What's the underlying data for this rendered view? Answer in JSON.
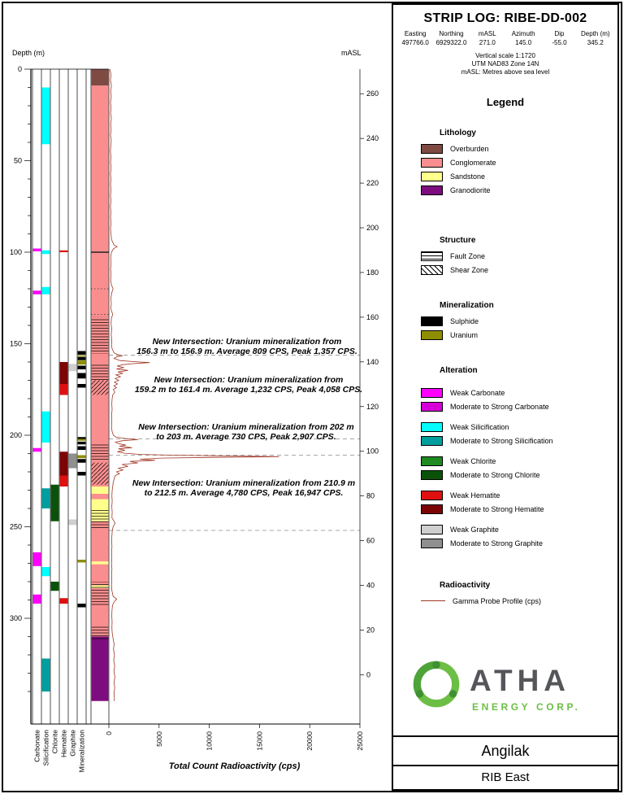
{
  "header": {
    "title": "STRIP LOG: RIBE-DD-002",
    "coords": [
      {
        "label": "Easting",
        "value": "497766.0"
      },
      {
        "label": "Northing",
        "value": "6929322.0"
      },
      {
        "label": "mASL",
        "value": "271.0"
      },
      {
        "label": "Azimuth",
        "value": "145.0"
      },
      {
        "label": "Dip",
        "value": "-55.0"
      },
      {
        "label": "Depth (m)",
        "value": "345.2"
      }
    ],
    "notes": [
      "Vertical scale 1:1720",
      "UTM NAD83 Zone 14N",
      "mASL: Metres above sea level"
    ]
  },
  "legend": {
    "title": "Legend",
    "lithology": {
      "title": "Lithology",
      "items": [
        {
          "label": "Overburden",
          "color": "#7F4A42"
        },
        {
          "label": "Conglomerate",
          "color": "#FA8E8E"
        },
        {
          "label": "Sandstone",
          "color": "#FFFF8C"
        },
        {
          "label": "Granodiorite",
          "color": "#7D0C7E"
        }
      ]
    },
    "structure": {
      "title": "Structure",
      "items": [
        {
          "label": "Fault Zone",
          "pattern": "fault"
        },
        {
          "label": "Shear Zone",
          "pattern": "shear"
        }
      ]
    },
    "mineralization": {
      "title": "Mineralization",
      "items": [
        {
          "label": "Sulphide",
          "color": "#000000"
        },
        {
          "label": "Uranium",
          "color": "#8E8E00"
        }
      ]
    },
    "alteration": {
      "title": "Alteration",
      "items": [
        {
          "weak_label": "Weak Carbonate",
          "weak_color": "#FF00FF",
          "strong_label": "Moderate to Strong Carbonate",
          "strong_color": "#D600D6"
        },
        {
          "weak_label": "Weak Silicification",
          "weak_color": "#00FFFF",
          "strong_label": "Moderate to Strong Silicification",
          "strong_color": "#009E9E"
        },
        {
          "weak_label": "Weak Chlorite",
          "weak_color": "#1F8A1F",
          "strong_label": "Moderate to Strong Chlorite",
          "strong_color": "#0A520A"
        },
        {
          "weak_label": "Weak Hematite",
          "weak_color": "#DE1010",
          "strong_label": "Moderate to Strong Hematite",
          "strong_color": "#7C0404"
        },
        {
          "weak_label": "Weak Graphite",
          "weak_color": "#CFCFCF",
          "strong_label": "Moderate to Strong Graphite",
          "strong_color": "#8F8F8F"
        }
      ]
    },
    "radioactivity": {
      "title": "Radioactivity",
      "items": [
        {
          "label": "Gamma Probe Profile (cps)",
          "color": "#A03524"
        }
      ]
    }
  },
  "logo": {
    "brand": "ATHA",
    "sub": "ENERGY CORP.",
    "green": "#6CBE45",
    "dark": "#54565A"
  },
  "footer": {
    "project": "Angilak",
    "area": "RIB East"
  },
  "chart_data": {
    "type": "strip-log",
    "title": "STRIP LOG: RIBE-DD-002",
    "depth_axis": {
      "label": "Depth (m)",
      "min": 0,
      "max": 345.2,
      "major_tick": 50,
      "minor_tick": 10
    },
    "masl_axis": {
      "label": "mASL",
      "collar_masl": 271.0,
      "dip_deg": -55.0,
      "ticks": [
        260,
        240,
        220,
        200,
        180,
        160,
        140,
        120,
        100,
        80,
        60,
        40,
        20,
        0
      ]
    },
    "gamma_axis": {
      "label": "Total Count Radioactivity (cps)",
      "min": 0,
      "max": 25000,
      "ticks": [
        0,
        5000,
        10000,
        15000,
        20000,
        25000
      ]
    },
    "track_labels": [
      "Carbonate",
      "Silicification",
      "Chlorite",
      "Hematite",
      "Graphite",
      "Mineralization"
    ],
    "lithology": [
      {
        "from": 0,
        "to": 9,
        "unit": "Overburden"
      },
      {
        "from": 9,
        "to": 228,
        "unit": "Conglomerate"
      },
      {
        "from": 228,
        "to": 232,
        "unit": "Sandstone"
      },
      {
        "from": 232,
        "to": 235,
        "unit": "Conglomerate"
      },
      {
        "from": 235,
        "to": 247,
        "unit": "Sandstone"
      },
      {
        "from": 247,
        "to": 269,
        "unit": "Conglomerate"
      },
      {
        "from": 269,
        "to": 270.5,
        "unit": "Sandstone"
      },
      {
        "from": 270.5,
        "to": 282,
        "unit": "Conglomerate"
      },
      {
        "from": 282,
        "to": 283.5,
        "unit": "Sandstone"
      },
      {
        "from": 283.5,
        "to": 310,
        "unit": "Conglomerate"
      },
      {
        "from": 310,
        "to": 345.2,
        "unit": "Granodiorite"
      }
    ],
    "alteration_tracks": {
      "carbonate": [
        {
          "from": 98,
          "to": 99.5,
          "grade": "weak"
        },
        {
          "from": 121,
          "to": 123,
          "grade": "weak"
        },
        {
          "from": 207,
          "to": 209,
          "grade": "weak"
        },
        {
          "from": 264,
          "to": 271.5,
          "grade": "weak"
        },
        {
          "from": 287,
          "to": 292,
          "grade": "weak"
        }
      ],
      "silicification": [
        {
          "from": 10,
          "to": 41,
          "grade": "weak"
        },
        {
          "from": 99,
          "to": 101,
          "grade": "weak"
        },
        {
          "from": 119,
          "to": 123,
          "grade": "weak"
        },
        {
          "from": 187,
          "to": 204,
          "grade": "weak"
        },
        {
          "from": 229,
          "to": 240,
          "grade": "strong"
        },
        {
          "from": 272,
          "to": 277,
          "grade": "weak"
        },
        {
          "from": 322,
          "to": 340,
          "grade": "strong"
        }
      ],
      "chlorite": [
        {
          "from": 227,
          "to": 247,
          "grade": "strong"
        },
        {
          "from": 280,
          "to": 285,
          "grade": "strong"
        }
      ],
      "hematite": [
        {
          "from": 99,
          "to": 100,
          "grade": "weak"
        },
        {
          "from": 160,
          "to": 172,
          "grade": "strong"
        },
        {
          "from": 172,
          "to": 178,
          "grade": "weak"
        },
        {
          "from": 209,
          "to": 222,
          "grade": "strong"
        },
        {
          "from": 222,
          "to": 228,
          "grade": "weak"
        },
        {
          "from": 289,
          "to": 292,
          "grade": "weak"
        }
      ],
      "graphite": [
        {
          "from": 161,
          "to": 165,
          "grade": "weak"
        },
        {
          "from": 210,
          "to": 218,
          "grade": "strong"
        },
        {
          "from": 246,
          "to": 249,
          "grade": "weak"
        }
      ]
    },
    "mineralization_track": [
      {
        "from": 154,
        "to": 156,
        "type": "sulphide"
      },
      {
        "from": 156.3,
        "to": 156.9,
        "type": "uranium"
      },
      {
        "from": 157.2,
        "to": 159,
        "type": "sulphide"
      },
      {
        "from": 159.2,
        "to": 161.4,
        "type": "uranium"
      },
      {
        "from": 162,
        "to": 164,
        "type": "sulphide"
      },
      {
        "from": 166,
        "to": 169,
        "type": "sulphide"
      },
      {
        "from": 172,
        "to": 174,
        "type": "sulphide"
      },
      {
        "from": 201,
        "to": 202,
        "type": "sulphide"
      },
      {
        "from": 202,
        "to": 203,
        "type": "uranium"
      },
      {
        "from": 203.5,
        "to": 205,
        "type": "sulphide"
      },
      {
        "from": 206,
        "to": 208,
        "type": "sulphide"
      },
      {
        "from": 210.9,
        "to": 212.5,
        "type": "uranium"
      },
      {
        "from": 213,
        "to": 215,
        "type": "sulphide"
      },
      {
        "from": 220,
        "to": 222,
        "type": "sulphide"
      },
      {
        "from": 268,
        "to": 269.5,
        "type": "uranium"
      },
      {
        "from": 292,
        "to": 294,
        "type": "sulphide"
      }
    ],
    "structure_zones": [
      {
        "from": 135.5,
        "to": 155.5,
        "type": "fault"
      },
      {
        "from": 161,
        "to": 170,
        "type": "fault"
      },
      {
        "from": 170,
        "to": 178,
        "type": "shear"
      },
      {
        "from": 205,
        "to": 214,
        "type": "fault"
      },
      {
        "from": 215,
        "to": 227,
        "type": "shear"
      },
      {
        "from": 240,
        "to": 251,
        "type": "fault"
      },
      {
        "from": 280,
        "to": 293,
        "type": "fault"
      },
      {
        "from": 304,
        "to": 312,
        "type": "fault"
      }
    ],
    "reference_lines": {
      "dashed_depths": [
        156.3,
        202,
        210.9,
        252
      ],
      "solid_depths": [
        100
      ],
      "dotted_depths": [
        120,
        134
      ]
    },
    "annotations": [
      {
        "line1": "New Intersection: Uranium mineralization from",
        "line2": "156.3 m to 156.9 m. Average 809 CPS, Peak 1,357 CPS."
      },
      {
        "line1": "New Intersection: Uranium mineralization from",
        "line2": "159.2 m to 161.4 m. Average 1,232 CPS, Peak 4,058 CPS."
      },
      {
        "line1": "New Intersection: Uranium mineralization from 202 m",
        "line2": "to 203 m. Average 730 CPS, Peak 2,907 CPS."
      },
      {
        "line1": "New Intersection: Uranium mineralization from 210.9 m",
        "line2": "to 212.5 m. Average 4,780 CPS, Peak 16,947 CPS."
      }
    ],
    "gamma_profile": [
      [
        0,
        100
      ],
      [
        3,
        220
      ],
      [
        6,
        150
      ],
      [
        9,
        260
      ],
      [
        12,
        180
      ],
      [
        15,
        240
      ],
      [
        18,
        160
      ],
      [
        21,
        220
      ],
      [
        24,
        170
      ],
      [
        27,
        250
      ],
      [
        30,
        180
      ],
      [
        33,
        230
      ],
      [
        36,
        160
      ],
      [
        39,
        240
      ],
      [
        42,
        190
      ],
      [
        45,
        150
      ],
      [
        48,
        210
      ],
      [
        51,
        170
      ],
      [
        54,
        230
      ],
      [
        57,
        160
      ],
      [
        60,
        200
      ],
      [
        63,
        170
      ],
      [
        66,
        220
      ],
      [
        69,
        160
      ],
      [
        72,
        210
      ],
      [
        75,
        150
      ],
      [
        78,
        200
      ],
      [
        81,
        170
      ],
      [
        84,
        220
      ],
      [
        87,
        160
      ],
      [
        90,
        210
      ],
      [
        93,
        260
      ],
      [
        96,
        500
      ],
      [
        97,
        820
      ],
      [
        98,
        480
      ],
      [
        100,
        260
      ],
      [
        103,
        180
      ],
      [
        106,
        230
      ],
      [
        109,
        170
      ],
      [
        112,
        220
      ],
      [
        115,
        180
      ],
      [
        118,
        260
      ],
      [
        120,
        420
      ],
      [
        122,
        300
      ],
      [
        125,
        200
      ],
      [
        128,
        240
      ],
      [
        131,
        200
      ],
      [
        134,
        380
      ],
      [
        136,
        260
      ],
      [
        139,
        220
      ],
      [
        142,
        280
      ],
      [
        145,
        230
      ],
      [
        148,
        290
      ],
      [
        151,
        260
      ],
      [
        153,
        340
      ],
      [
        155,
        520
      ],
      [
        156,
        880
      ],
      [
        156.6,
        1357
      ],
      [
        157.2,
        760
      ],
      [
        158,
        520
      ],
      [
        159.2,
        1100
      ],
      [
        159.8,
        2600
      ],
      [
        160.3,
        4058
      ],
      [
        160.9,
        2400
      ],
      [
        161.4,
        1400
      ],
      [
        162.2,
        820
      ],
      [
        163,
        1500
      ],
      [
        163.8,
        760
      ],
      [
        164.6,
        1900
      ],
      [
        165.4,
        900
      ],
      [
        166.2,
        1400
      ],
      [
        167,
        700
      ],
      [
        168,
        1150
      ],
      [
        169,
        620
      ],
      [
        170,
        980
      ],
      [
        171,
        560
      ],
      [
        172,
        860
      ],
      [
        173,
        500
      ],
      [
        174,
        760
      ],
      [
        175,
        440
      ],
      [
        176.5,
        600
      ],
      [
        178,
        380
      ],
      [
        180,
        320
      ],
      [
        183,
        290
      ],
      [
        186,
        320
      ],
      [
        189,
        270
      ],
      [
        192,
        300
      ],
      [
        195,
        260
      ],
      [
        198,
        320
      ],
      [
        200,
        450
      ],
      [
        201,
        700
      ],
      [
        201.8,
        1600
      ],
      [
        202.4,
        2907
      ],
      [
        203,
        1300
      ],
      [
        203.8,
        650
      ],
      [
        204.6,
        950
      ],
      [
        205.4,
        1700
      ],
      [
        206,
        1050
      ],
      [
        206.8,
        2300
      ],
      [
        207.4,
        950
      ],
      [
        208.2,
        1600
      ],
      [
        209,
        850
      ],
      [
        209.8,
        1500
      ],
      [
        210.5,
        3200
      ],
      [
        210.9,
        6500
      ],
      [
        211.3,
        11500
      ],
      [
        211.7,
        16947
      ],
      [
        212.1,
        10500
      ],
      [
        212.5,
        5200
      ],
      [
        213.1,
        3100
      ],
      [
        213.7,
        4600
      ],
      [
        214.3,
        2100
      ],
      [
        215.1,
        2900
      ],
      [
        216,
        1300
      ],
      [
        217,
        1900
      ],
      [
        218,
        950
      ],
      [
        219,
        1400
      ],
      [
        220,
        760
      ],
      [
        221,
        1050
      ],
      [
        222,
        640
      ],
      [
        224,
        520
      ],
      [
        226,
        430
      ],
      [
        228,
        380
      ],
      [
        230,
        330
      ],
      [
        233,
        300
      ],
      [
        236,
        330
      ],
      [
        239,
        290
      ],
      [
        242,
        330
      ],
      [
        245,
        300
      ],
      [
        248,
        620
      ],
      [
        250,
        420
      ],
      [
        252,
        340
      ],
      [
        255,
        300
      ],
      [
        258,
        280
      ],
      [
        261,
        310
      ],
      [
        264,
        270
      ],
      [
        267,
        300
      ],
      [
        270,
        260
      ],
      [
        273,
        310
      ],
      [
        276,
        270
      ],
      [
        279,
        300
      ],
      [
        282,
        260
      ],
      [
        285,
        310
      ],
      [
        288,
        420
      ],
      [
        289.5,
        780
      ],
      [
        291,
        520
      ],
      [
        293,
        360
      ],
      [
        296,
        310
      ],
      [
        299,
        290
      ],
      [
        302,
        320
      ],
      [
        305,
        300
      ],
      [
        308,
        330
      ],
      [
        311,
        420
      ],
      [
        314,
        520
      ],
      [
        317,
        460
      ],
      [
        320,
        560
      ],
      [
        323,
        480
      ],
      [
        326,
        580
      ],
      [
        329,
        500
      ],
      [
        332,
        600
      ],
      [
        335,
        520
      ],
      [
        338,
        580
      ],
      [
        341,
        500
      ],
      [
        344,
        560
      ],
      [
        345.2,
        520
      ]
    ]
  }
}
